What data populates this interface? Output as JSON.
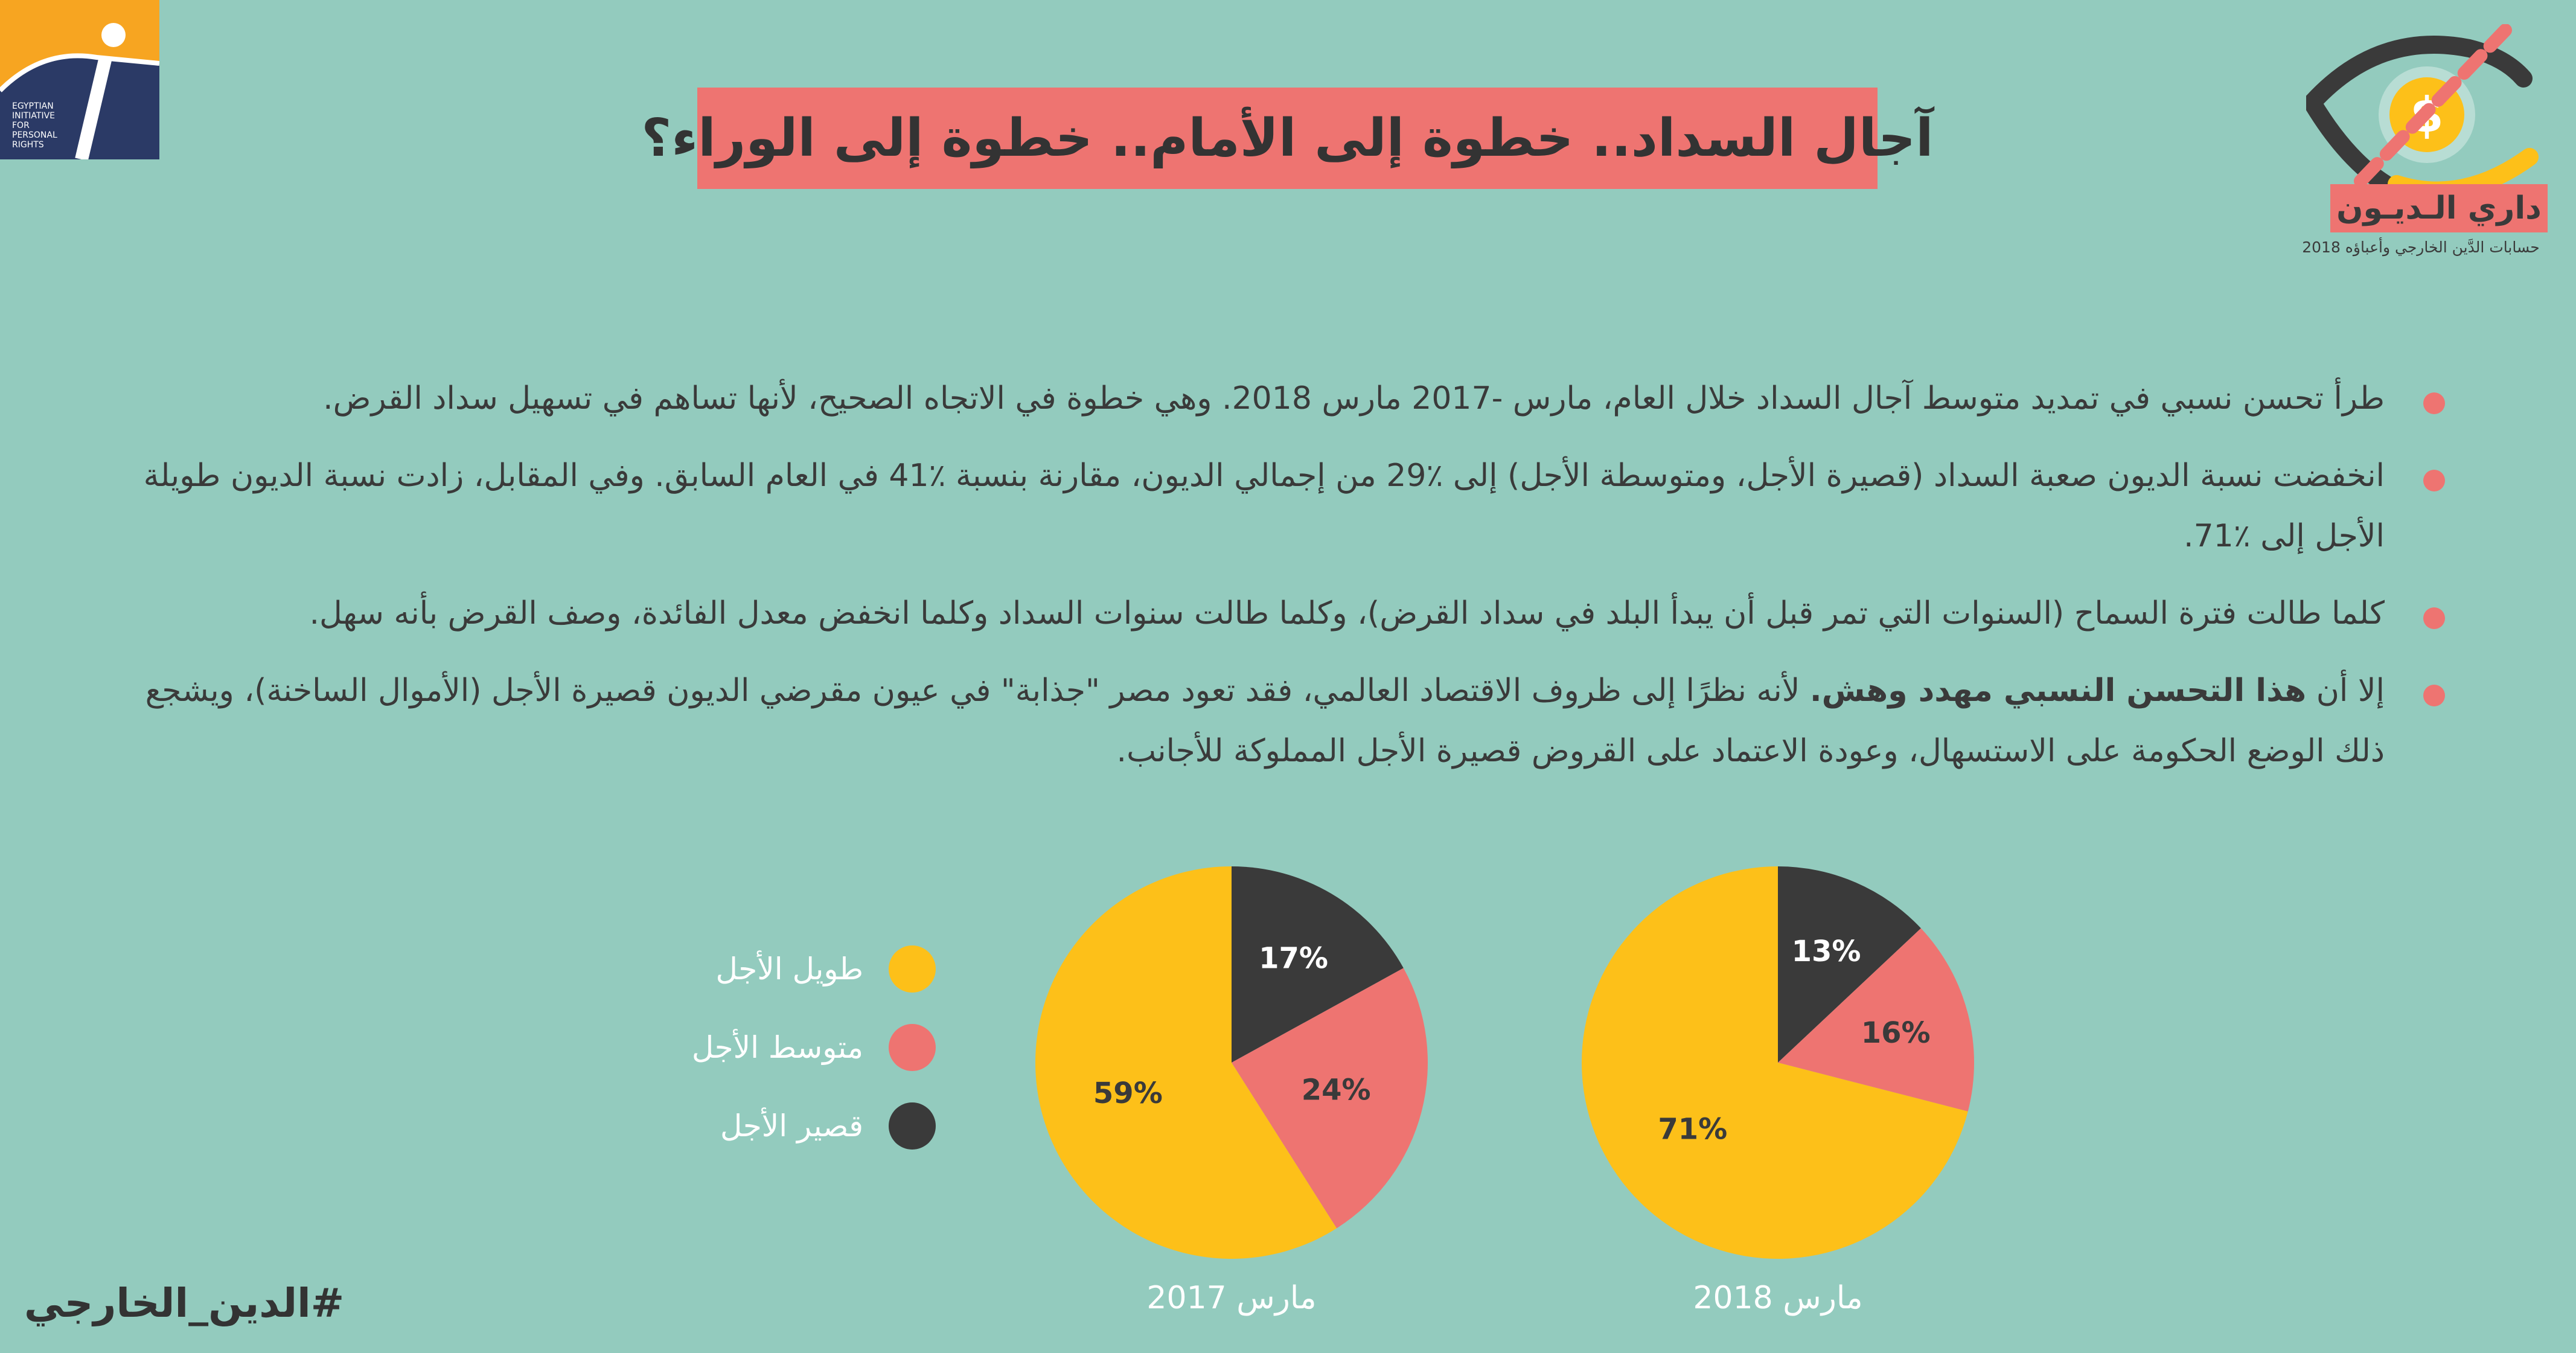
{
  "header": {
    "title": "آجال السداد.. خطوة إلى الأمام.. خطوة إلى الوراء؟",
    "org_logo_text": [
      "EGYPTIAN",
      "INITIATIVE",
      "FOR",
      "PERSONAL",
      "RIGHTS"
    ],
    "brand_name": "داري الـديـون",
    "brand_tagline": "حسابات الدَّين الخارجي وأعباؤه 2018"
  },
  "bullets": [
    {
      "text": "طرأ تحسن نسبي في تمديد متوسط آجال السداد خلال العام، مارس -2017 مارس 2018. وهي خطوة في الاتجاه الصحيح، لأنها تساهم في تسهيل سداد القرض."
    },
    {
      "text": "انخفضت نسبة الديون صعبة السداد (قصيرة الأجل، ومتوسطة الأجل) إلى ٪29 من إجمالي الديون، مقارنة بنسبة ٪41 في العام السابق. وفي المقابل، زادت نسبة الديون طويلة الأجل إلى ٪71."
    },
    {
      "text": "كلما طالت فترة السماح (السنوات التي تمر قبل أن يبدأ البلد في سداد القرض)، وكلما طالت سنوات السداد وكلما انخفض معدل الفائدة، وصف القرض بأنه سهل."
    },
    {
      "prefix": "إلا أن",
      "bold": "هذا التحسن النسبي مهدد وهش.",
      "text": "لأنه نظرًا إلى ظروف الاقتصاد العالمي، فقد تعود مصر \"جذابة\" في عيون مقرضي الديون قصيرة الأجل (الأموال الساخنة)، ويشجع ذلك الوضع الحكومة على الاستسهال، وعودة الاعتماد على القروض قصيرة الأجل المملوكة للأجانب."
    }
  ],
  "legend": [
    {
      "label": "طويل الأجل",
      "color": "#fdc019"
    },
    {
      "label": "متوسط الأجل",
      "color": "#ee7471"
    },
    {
      "label": "قصير الأجل",
      "color": "#3a3a3a"
    }
  ],
  "colors": {
    "background": "#93cbbe",
    "accent": "#ee7471",
    "long": "#fdc019",
    "medium": "#ee7471",
    "short": "#3a3a3a"
  },
  "chart_data": [
    {
      "type": "pie",
      "title": "مارس 2017",
      "categories": [
        "قصير الأجل",
        "متوسط الأجل",
        "طويل الأجل"
      ],
      "values": [
        17,
        24,
        59
      ],
      "labels": [
        "17%",
        "24%",
        "59%"
      ],
      "colors": [
        "#3a3a3a",
        "#ee7471",
        "#fdc019"
      ],
      "start_angle_deg": 0,
      "direction": "clockwise"
    },
    {
      "type": "pie",
      "title": "مارس 2018",
      "categories": [
        "قصير الأجل",
        "متوسط الأجل",
        "طويل الأجل"
      ],
      "values": [
        13,
        16,
        71
      ],
      "labels": [
        "13%",
        "16%",
        "71%"
      ],
      "colors": [
        "#3a3a3a",
        "#ee7471",
        "#fdc019"
      ],
      "start_angle_deg": 0,
      "direction": "clockwise"
    }
  ],
  "footer": {
    "hashtag": "#الدين_الخارجي"
  }
}
